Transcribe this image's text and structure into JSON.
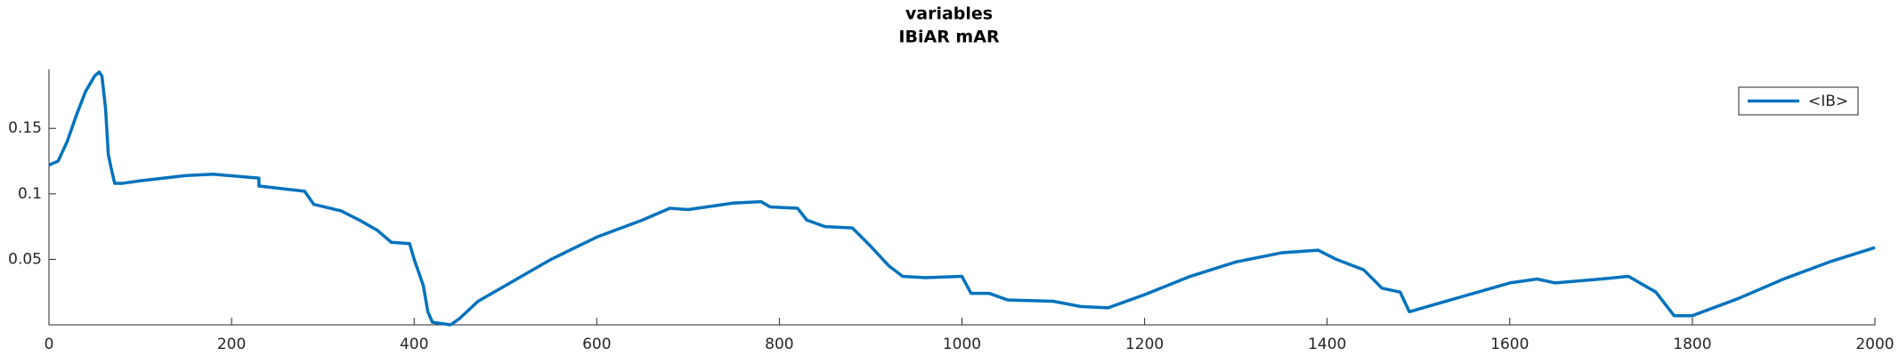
{
  "chart_data": {
    "type": "line",
    "title": "variables",
    "subtitle": "IBiAR mAR",
    "x": [
      0,
      10,
      20,
      30,
      40,
      50,
      55,
      58,
      62,
      65,
      68,
      72,
      80,
      100,
      150,
      180,
      230,
      230,
      280,
      290,
      320,
      340,
      360,
      375,
      395,
      400,
      410,
      415,
      420,
      440,
      450,
      470,
      500,
      550,
      600,
      650,
      680,
      700,
      750,
      780,
      790,
      820,
      830,
      850,
      880,
      900,
      920,
      935,
      960,
      1000,
      1010,
      1030,
      1050,
      1100,
      1130,
      1160,
      1200,
      1250,
      1300,
      1350,
      1390,
      1410,
      1440,
      1460,
      1480,
      1490,
      1520,
      1550,
      1600,
      1630,
      1650,
      1700,
      1730,
      1760,
      1780,
      1800,
      1850,
      1900,
      1950,
      2000
    ],
    "series": [
      {
        "name": "<IB>",
        "color": "#0072bd",
        "values": [
          0.122,
          0.125,
          0.14,
          0.16,
          0.178,
          0.19,
          0.193,
          0.19,
          0.165,
          0.13,
          0.12,
          0.108,
          0.108,
          0.11,
          0.114,
          0.115,
          0.112,
          0.106,
          0.102,
          0.092,
          0.087,
          0.08,
          0.072,
          0.063,
          0.062,
          0.05,
          0.03,
          0.01,
          0.002,
          0.0,
          0.005,
          0.018,
          0.03,
          0.05,
          0.067,
          0.08,
          0.089,
          0.088,
          0.093,
          0.094,
          0.09,
          0.089,
          0.08,
          0.075,
          0.074,
          0.06,
          0.045,
          0.037,
          0.036,
          0.037,
          0.024,
          0.024,
          0.019,
          0.018,
          0.014,
          0.013,
          0.023,
          0.037,
          0.048,
          0.055,
          0.057,
          0.05,
          0.042,
          0.028,
          0.025,
          0.01,
          0.016,
          0.022,
          0.032,
          0.035,
          0.032,
          0.035,
          0.037,
          0.025,
          0.007,
          0.007,
          0.02,
          0.035,
          0.048,
          0.059
        ]
      }
    ],
    "xlim": [
      0,
      2000
    ],
    "xticks": [
      0,
      200,
      400,
      600,
      800,
      1000,
      1200,
      1400,
      1600,
      1800,
      2000
    ],
    "ylim": [
      0,
      0.195
    ],
    "yticks": [
      0.05,
      0.1,
      0.15
    ],
    "legend": "top-right"
  }
}
